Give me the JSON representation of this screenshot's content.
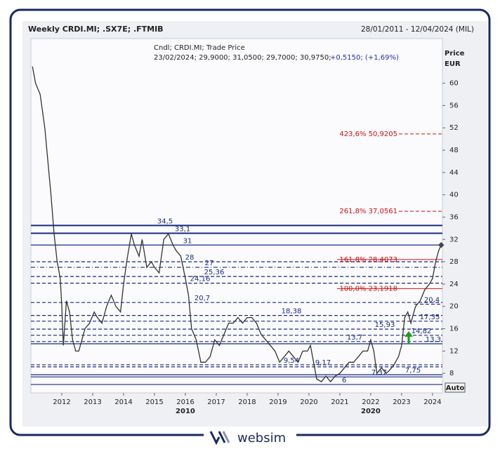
{
  "chart_data": {
    "type": "line",
    "title": "Weekly CRDI.MI; .SX7E; .FTMIB",
    "date_range": "28/01/2011 - 12/04/2024 (MIL)",
    "info_line1": "Cndl; CRDI.MI; Trade Price",
    "info_line2": "23/02/2024; 29,9000; 31,0500; 29,7000; 30,9750;",
    "info_change": "+0,5150; (+1,69%)",
    "y_axis_title": "Price",
    "y_axis_unit": "EUR",
    "x": [
      2011.05,
      2011.15,
      2011.3,
      2011.45,
      2011.55,
      2011.65,
      2011.75,
      2011.85,
      2011.95,
      2012.0,
      2012.05,
      2012.15,
      2012.25,
      2012.35,
      2012.45,
      2012.55,
      2012.65,
      2012.75,
      2012.9,
      2013.05,
      2013.15,
      2013.3,
      2013.45,
      2013.6,
      2013.75,
      2013.9,
      2014.0,
      2014.1,
      2014.25,
      2014.35,
      2014.5,
      2014.6,
      2014.75,
      2014.9,
      2015.0,
      2015.15,
      2015.3,
      2015.45,
      2015.6,
      2015.7,
      2015.85,
      2016.0,
      2016.1,
      2016.2,
      2016.35,
      2016.5,
      2016.65,
      2016.8,
      2016.95,
      2017.1,
      2017.25,
      2017.4,
      2017.55,
      2017.7,
      2017.85,
      2018.0,
      2018.15,
      2018.3,
      2018.45,
      2018.6,
      2018.75,
      2018.9,
      2019.05,
      2019.2,
      2019.35,
      2019.5,
      2019.65,
      2019.8,
      2019.95,
      2020.05,
      2020.15,
      2020.25,
      2020.4,
      2020.55,
      2020.7,
      2020.85,
      2021.0,
      2021.15,
      2021.3,
      2021.45,
      2021.6,
      2021.75,
      2021.9,
      2022.0,
      2022.1,
      2022.2,
      2022.35,
      2022.5,
      2022.6,
      2022.75,
      2022.9,
      2023.0,
      2023.1,
      2023.2,
      2023.3,
      2023.45,
      2023.6,
      2023.75,
      2023.9,
      2024.0,
      2024.1,
      2024.2,
      2024.28
    ],
    "series": [
      {
        "color": "#333333",
        "values": [
          63,
          60,
          58,
          52,
          46,
          40,
          33,
          28,
          25,
          20,
          13,
          21,
          19,
          14,
          12,
          12,
          14,
          16,
          17,
          19,
          18,
          17,
          20,
          22,
          20,
          19,
          24,
          28,
          33,
          31,
          29,
          32,
          27,
          28,
          27,
          26,
          32,
          33,
          31,
          30,
          29,
          25,
          22,
          16,
          14,
          10,
          10,
          11,
          14,
          13,
          15,
          17,
          17,
          18,
          17,
          18,
          18,
          17,
          15,
          14,
          13,
          12,
          10,
          11,
          12,
          11,
          10,
          12,
          12,
          13,
          10,
          7,
          6.5,
          7.5,
          6.5,
          7.5,
          8,
          9,
          10,
          10,
          11,
          12,
          12,
          14,
          12,
          8,
          9,
          8,
          8.5,
          9.5,
          11,
          13,
          18,
          19,
          17,
          20,
          21,
          23,
          24,
          25,
          28,
          30,
          31
        ]
      }
    ],
    "xlim": [
      2011.0,
      2024.32
    ],
    "xticks": [
      2012,
      2013,
      2014,
      2015,
      2016,
      2017,
      2018,
      2019,
      2020,
      2021,
      2022,
      2023,
      2024
    ],
    "decade_labels": [
      {
        "value": 2016,
        "label": "2010"
      },
      {
        "value": 2022,
        "label": "2020"
      }
    ],
    "ylim": [
      4.5,
      68
    ],
    "yticks": [
      8,
      12,
      16,
      20,
      24,
      28,
      32,
      36,
      40,
      44,
      48,
      52,
      56,
      60
    ],
    "levels": [
      {
        "value": 34.5,
        "label": "34,5",
        "style": "solid"
      },
      {
        "value": 33.1,
        "label": "33,1",
        "style": "solid"
      },
      {
        "value": 31,
        "label": "31",
        "style": "solid"
      },
      {
        "value": 28,
        "label": "28",
        "style": "dashed"
      },
      {
        "value": 27,
        "label": "27",
        "style": "dashdot"
      },
      {
        "value": 25.36,
        "label": "25,36",
        "style": "dashed"
      },
      {
        "value": 24.16,
        "label": "24,16",
        "style": "dashed"
      },
      {
        "value": 20.7,
        "label": "20,7",
        "style": "dashed"
      },
      {
        "value": 20.4,
        "label": "20,4",
        "style": "dashed"
      },
      {
        "value": 18.38,
        "label": "18,38",
        "style": "dashed"
      },
      {
        "value": 17.35,
        "label": "17,35",
        "style": "dashed"
      },
      {
        "value": 15.93,
        "label": "15,93",
        "style": "dashed"
      },
      {
        "value": 14.82,
        "label": "14,82",
        "style": "dashed"
      },
      {
        "value": 13.7,
        "label": "13,7",
        "style": "dashed"
      },
      {
        "value": 13.3,
        "label": "13,3",
        "style": "solid"
      },
      {
        "value": 9.54,
        "label": "9,54",
        "style": "dashed"
      },
      {
        "value": 9.17,
        "label": "9,17",
        "style": "dashed"
      },
      {
        "value": 7.75,
        "label": "7,75",
        "style": "solid"
      },
      {
        "value": 7.37,
        "label": "7,37",
        "style": "solid"
      },
      {
        "value": 6,
        "label": "6",
        "style": "solid"
      }
    ],
    "fib_color": "#d01010",
    "fib_levels": [
      {
        "value": 50.9205,
        "label": "423,6% 50,9205",
        "style": "dashed"
      },
      {
        "value": 37.0561,
        "label": "261,8% 37,0561",
        "style": "dashed"
      },
      {
        "value": 28.4073,
        "label": "161,8% 28,4073",
        "style": "solid"
      },
      {
        "value": 23.1918,
        "label": "100,0% 23,1918",
        "style": "solid"
      }
    ],
    "level_color": "#1a2a80",
    "button": "Auto"
  },
  "brand": "websim"
}
